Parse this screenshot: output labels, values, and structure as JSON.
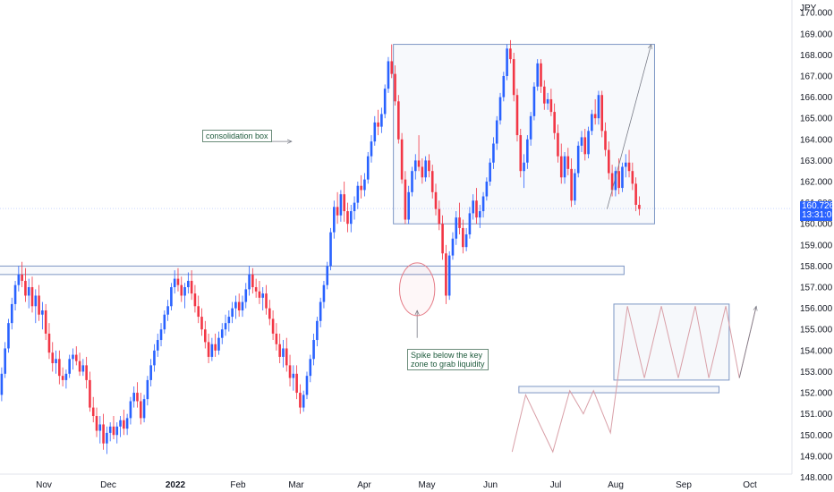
{
  "chart_data": {
    "type": "candlestick",
    "currency": "JPY",
    "y_axis": {
      "ticks": [
        "170.000",
        "169.000",
        "168.000",
        "167.000",
        "166.000",
        "165.000",
        "164.000",
        "163.000",
        "162.000",
        "161.000",
        "160.000",
        "159.000",
        "158.000",
        "157.000",
        "156.000",
        "155.000",
        "154.000",
        "153.000",
        "152.000",
        "151.000",
        "150.000",
        "149.000",
        "148.000"
      ],
      "ylim": [
        147.3,
        170.6
      ]
    },
    "x_axis": {
      "labels": [
        {
          "text": "Nov",
          "bold": false
        },
        {
          "text": "Dec",
          "bold": false
        },
        {
          "text": "2022",
          "bold": true
        },
        {
          "text": "Feb",
          "bold": false
        },
        {
          "text": "Mar",
          "bold": false
        },
        {
          "text": "Apr",
          "bold": false
        },
        {
          "text": "May",
          "bold": false
        },
        {
          "text": "Jun",
          "bold": false
        },
        {
          "text": "Jul",
          "bold": false
        },
        {
          "text": "Aug",
          "bold": false
        },
        {
          "text": "Sep",
          "bold": false
        },
        {
          "text": "Oct",
          "bold": false
        }
      ]
    },
    "colors": {
      "up": "#2962ff",
      "down": "#f23645",
      "box": "#7d96c4",
      "projection": "#d9a0a8"
    },
    "last_price": {
      "value": "160.726",
      "countdown": "13:31:05"
    },
    "candles": [
      [
        151.9,
        153.2,
        151.6,
        152.9
      ],
      [
        152.9,
        154.4,
        152.7,
        154.1
      ],
      [
        154.1,
        155.5,
        153.9,
        155.3
      ],
      [
        155.3,
        156.5,
        155.0,
        156.2
      ],
      [
        156.2,
        157.3,
        155.9,
        157.1
      ],
      [
        157.1,
        158.0,
        156.8,
        157.6
      ],
      [
        157.6,
        158.2,
        157.0,
        157.3
      ],
      [
        157.3,
        157.9,
        156.3,
        156.6
      ],
      [
        156.6,
        157.4,
        156.0,
        157.0
      ],
      [
        157.0,
        157.5,
        155.8,
        156.1
      ],
      [
        156.1,
        156.9,
        155.3,
        156.6
      ],
      [
        156.6,
        157.1,
        155.4,
        155.7
      ],
      [
        155.7,
        156.3,
        155.0,
        155.9
      ],
      [
        155.9,
        156.2,
        154.5,
        154.8
      ],
      [
        154.8,
        155.3,
        153.6,
        153.9
      ],
      [
        153.9,
        154.4,
        153.0,
        153.4
      ],
      [
        153.4,
        154.0,
        152.9,
        153.6
      ],
      [
        153.6,
        154.0,
        152.4,
        152.8
      ],
      [
        152.8,
        153.2,
        152.3,
        152.6
      ],
      [
        152.6,
        153.1,
        152.2,
        152.9
      ],
      [
        152.9,
        153.8,
        152.7,
        153.6
      ],
      [
        153.6,
        154.1,
        153.1,
        153.8
      ],
      [
        153.8,
        154.2,
        153.3,
        153.5
      ],
      [
        153.5,
        153.9,
        152.8,
        153.0
      ],
      [
        153.0,
        153.6,
        152.8,
        153.3
      ],
      [
        153.3,
        153.7,
        152.2,
        152.6
      ],
      [
        152.6,
        153.0,
        151.1,
        151.3
      ],
      [
        151.3,
        151.8,
        150.6,
        150.9
      ],
      [
        150.9,
        151.3,
        149.9,
        150.2
      ],
      [
        150.2,
        150.9,
        149.6,
        150.5
      ],
      [
        150.5,
        151.0,
        149.3,
        149.6
      ],
      [
        149.6,
        150.4,
        149.1,
        150.1
      ],
      [
        150.1,
        150.6,
        149.7,
        150.4
      ],
      [
        150.4,
        150.9,
        149.8,
        150.0
      ],
      [
        150.0,
        150.6,
        149.6,
        150.4
      ],
      [
        150.4,
        150.9,
        149.9,
        150.7
      ],
      [
        150.7,
        151.2,
        150.0,
        150.3
      ],
      [
        150.3,
        151.0,
        150.0,
        150.8
      ],
      [
        150.8,
        151.8,
        150.5,
        151.6
      ],
      [
        151.6,
        152.3,
        151.3,
        152.0
      ],
      [
        152.0,
        152.5,
        151.3,
        151.6
      ],
      [
        151.6,
        152.0,
        150.5,
        150.8
      ],
      [
        150.8,
        151.9,
        150.6,
        151.7
      ],
      [
        151.7,
        152.8,
        151.4,
        152.6
      ],
      [
        152.6,
        153.6,
        152.3,
        153.3
      ],
      [
        153.3,
        154.3,
        153.0,
        154.0
      ],
      [
        154.0,
        154.8,
        153.7,
        154.5
      ],
      [
        154.5,
        155.3,
        154.2,
        155.0
      ],
      [
        155.0,
        155.9,
        154.8,
        155.7
      ],
      [
        155.7,
        156.4,
        155.4,
        156.1
      ],
      [
        156.1,
        157.2,
        155.9,
        157.0
      ],
      [
        157.0,
        157.8,
        156.7,
        157.4
      ],
      [
        157.4,
        157.9,
        156.8,
        157.1
      ],
      [
        157.1,
        157.5,
        156.3,
        156.6
      ],
      [
        156.6,
        157.2,
        156.0,
        157.0
      ],
      [
        157.0,
        157.7,
        156.7,
        157.3
      ],
      [
        157.3,
        157.8,
        156.4,
        156.7
      ],
      [
        156.7,
        157.1,
        155.8,
        156.1
      ],
      [
        156.1,
        156.6,
        155.3,
        155.6
      ],
      [
        155.6,
        156.0,
        154.7,
        155.0
      ],
      [
        155.0,
        155.4,
        154.1,
        154.4
      ],
      [
        154.4,
        154.8,
        153.4,
        153.7
      ],
      [
        153.7,
        154.6,
        153.5,
        154.3
      ],
      [
        154.3,
        154.8,
        153.7,
        154.0
      ],
      [
        154.0,
        154.9,
        153.8,
        154.6
      ],
      [
        154.6,
        155.3,
        154.3,
        155.0
      ],
      [
        155.0,
        155.7,
        154.7,
        155.3
      ],
      [
        155.3,
        155.9,
        154.9,
        155.6
      ],
      [
        155.6,
        156.3,
        155.3,
        156.0
      ],
      [
        156.0,
        156.6,
        155.5,
        156.3
      ],
      [
        156.3,
        156.7,
        155.6,
        155.9
      ],
      [
        155.9,
        156.6,
        155.6,
        156.3
      ],
      [
        156.3,
        157.2,
        156.0,
        156.9
      ],
      [
        156.9,
        158.0,
        156.6,
        157.6
      ],
      [
        157.6,
        157.9,
        156.7,
        157.0
      ],
      [
        157.0,
        157.4,
        156.5,
        156.8
      ],
      [
        156.8,
        157.3,
        156.2,
        156.5
      ],
      [
        156.5,
        157.0,
        155.9,
        156.7
      ],
      [
        156.7,
        157.1,
        155.7,
        156.0
      ],
      [
        156.0,
        156.4,
        155.2,
        155.5
      ],
      [
        155.5,
        155.9,
        154.5,
        154.8
      ],
      [
        154.8,
        155.3,
        154.0,
        154.3
      ],
      [
        154.3,
        154.8,
        153.4,
        153.7
      ],
      [
        153.7,
        154.5,
        153.2,
        154.1
      ],
      [
        154.1,
        154.6,
        153.0,
        153.3
      ],
      [
        153.3,
        153.8,
        152.3,
        152.7
      ],
      [
        152.7,
        153.3,
        152.1,
        152.9
      ],
      [
        152.9,
        153.3,
        151.7,
        152.0
      ],
      [
        152.0,
        152.4,
        151.0,
        151.3
      ],
      [
        151.3,
        152.1,
        151.1,
        151.9
      ],
      [
        151.9,
        153.0,
        151.7,
        152.8
      ],
      [
        152.8,
        153.8,
        152.5,
        153.6
      ],
      [
        153.6,
        154.8,
        153.3,
        154.5
      ],
      [
        154.5,
        155.6,
        154.2,
        155.4
      ],
      [
        155.4,
        156.5,
        155.1,
        156.3
      ],
      [
        156.3,
        157.3,
        156.0,
        157.1
      ],
      [
        157.1,
        158.2,
        156.9,
        158.0
      ],
      [
        158.0,
        159.8,
        157.8,
        159.6
      ],
      [
        159.6,
        161.1,
        159.3,
        160.8
      ],
      [
        160.8,
        161.5,
        160.0,
        160.4
      ],
      [
        160.4,
        161.6,
        160.1,
        161.4
      ],
      [
        161.4,
        162.0,
        160.1,
        160.6
      ],
      [
        160.6,
        161.0,
        159.6,
        160.0
      ],
      [
        160.0,
        160.9,
        159.6,
        160.6
      ],
      [
        160.6,
        161.3,
        160.2,
        161.0
      ],
      [
        161.0,
        162.0,
        160.7,
        161.8
      ],
      [
        161.8,
        162.3,
        161.2,
        161.6
      ],
      [
        161.6,
        162.4,
        161.3,
        162.1
      ],
      [
        162.1,
        163.4,
        161.9,
        163.2
      ],
      [
        163.2,
        164.2,
        162.9,
        163.9
      ],
      [
        163.9,
        165.1,
        163.7,
        164.8
      ],
      [
        164.8,
        165.4,
        164.2,
        164.6
      ],
      [
        164.6,
        165.5,
        164.3,
        165.2
      ],
      [
        165.2,
        166.6,
        165.0,
        166.4
      ],
      [
        166.4,
        167.9,
        166.2,
        167.7
      ],
      [
        167.7,
        168.5,
        166.9,
        167.1
      ],
      [
        167.1,
        167.5,
        165.6,
        165.8
      ],
      [
        165.8,
        166.1,
        163.8,
        164.0
      ],
      [
        164.0,
        164.3,
        161.9,
        162.1
      ],
      [
        162.1,
        162.5,
        160.0,
        160.2
      ],
      [
        160.2,
        161.8,
        160.0,
        161.5
      ],
      [
        161.5,
        162.7,
        161.3,
        162.5
      ],
      [
        162.5,
        163.3,
        162.1,
        163.0
      ],
      [
        163.0,
        164.2,
        162.5,
        162.7
      ],
      [
        162.7,
        163.1,
        161.9,
        162.2
      ],
      [
        162.2,
        163.2,
        162.0,
        163.0
      ],
      [
        163.0,
        163.3,
        162.2,
        162.5
      ],
      [
        162.5,
        162.8,
        161.2,
        161.5
      ],
      [
        161.5,
        161.9,
        160.4,
        160.7
      ],
      [
        160.7,
        161.1,
        159.7,
        160.0
      ],
      [
        160.0,
        160.4,
        158.3,
        158.6
      ],
      [
        158.6,
        159.0,
        156.2,
        156.6
      ],
      [
        156.6,
        158.7,
        156.4,
        158.5
      ],
      [
        158.5,
        159.6,
        158.3,
        159.3
      ],
      [
        159.3,
        160.6,
        159.0,
        160.3
      ],
      [
        160.3,
        161.0,
        159.5,
        159.8
      ],
      [
        159.8,
        160.2,
        158.6,
        158.9
      ],
      [
        158.9,
        159.8,
        158.7,
        159.5
      ],
      [
        159.5,
        160.8,
        159.3,
        160.5
      ],
      [
        160.5,
        161.4,
        160.2,
        161.1
      ],
      [
        161.1,
        161.7,
        160.0,
        160.3
      ],
      [
        160.3,
        160.9,
        159.8,
        160.6
      ],
      [
        160.6,
        161.5,
        160.3,
        161.3
      ],
      [
        161.3,
        162.2,
        161.1,
        162.0
      ],
      [
        162.0,
        163.1,
        161.8,
        162.9
      ],
      [
        162.9,
        164.1,
        162.6,
        163.8
      ],
      [
        163.8,
        165.1,
        163.5,
        164.9
      ],
      [
        164.9,
        166.2,
        164.7,
        166.0
      ],
      [
        166.0,
        167.2,
        165.8,
        167.0
      ],
      [
        167.0,
        168.5,
        166.8,
        168.3
      ],
      [
        168.3,
        168.7,
        167.6,
        167.8
      ],
      [
        167.8,
        168.1,
        165.8,
        166.1
      ],
      [
        166.1,
        166.4,
        163.9,
        164.2
      ],
      [
        164.2,
        164.5,
        162.2,
        162.5
      ],
      [
        162.5,
        163.3,
        161.7,
        162.9
      ],
      [
        162.9,
        164.2,
        162.6,
        164.0
      ],
      [
        164.0,
        165.3,
        163.7,
        165.1
      ],
      [
        165.1,
        166.7,
        164.9,
        166.5
      ],
      [
        166.5,
        167.8,
        166.3,
        167.6
      ],
      [
        167.6,
        167.8,
        166.2,
        166.5
      ],
      [
        166.5,
        166.8,
        165.4,
        165.7
      ],
      [
        165.7,
        166.2,
        165.4,
        165.9
      ],
      [
        165.9,
        166.4,
        165.1,
        165.3
      ],
      [
        165.3,
        165.7,
        164.0,
        164.3
      ],
      [
        164.3,
        164.7,
        162.9,
        163.2
      ],
      [
        163.2,
        163.8,
        161.9,
        162.2
      ],
      [
        162.2,
        163.4,
        161.9,
        163.2
      ],
      [
        163.2,
        163.6,
        162.3,
        162.6
      ],
      [
        162.6,
        163.1,
        160.8,
        161.1
      ],
      [
        161.1,
        162.6,
        160.9,
        162.4
      ],
      [
        162.4,
        163.9,
        162.2,
        163.7
      ],
      [
        163.7,
        164.4,
        163.4,
        164.1
      ],
      [
        164.1,
        164.5,
        163.0,
        163.3
      ],
      [
        163.3,
        164.6,
        163.1,
        164.4
      ],
      [
        164.4,
        165.4,
        164.2,
        165.2
      ],
      [
        165.2,
        165.9,
        164.7,
        165.0
      ],
      [
        165.0,
        166.3,
        164.7,
        166.1
      ],
      [
        166.1,
        166.3,
        164.1,
        164.4
      ],
      [
        164.4,
        164.8,
        163.2,
        163.5
      ],
      [
        163.5,
        163.9,
        162.1,
        162.4
      ],
      [
        162.4,
        162.8,
        161.3,
        161.6
      ],
      [
        161.6,
        162.7,
        161.3,
        162.5
      ],
      [
        162.5,
        163.1,
        161.4,
        161.7
      ],
      [
        161.7,
        162.9,
        161.5,
        162.7
      ],
      [
        162.7,
        163.3,
        162.2,
        162.9
      ],
      [
        162.9,
        163.5,
        162.2,
        162.5
      ],
      [
        162.5,
        162.9,
        161.6,
        161.9
      ],
      [
        161.9,
        162.2,
        160.6,
        160.9
      ],
      [
        160.9,
        161.3,
        160.4,
        160.7
      ]
    ],
    "boxes": [
      {
        "name": "consolidation-box",
        "x_start": 116,
        "x_end": 193,
        "y_low": 160.0,
        "y_high": 168.5
      },
      {
        "name": "key-zone",
        "x_start": -2,
        "x_end": 184,
        "y_low": 157.6,
        "y_high": 158.0
      },
      {
        "name": "projection-zone",
        "x_start": 181,
        "x_end": 215,
        "y_low": 152.6,
        "y_high": 156.2
      },
      {
        "name": "projection-support",
        "x_start": 153,
        "x_end": 212,
        "y_low": 152.0,
        "y_high": 152.3
      }
    ],
    "projection_path": [
      [
        151,
        149.2
      ],
      [
        155,
        151.9
      ],
      [
        163,
        149.2
      ],
      [
        168,
        152.1
      ],
      [
        172,
        151.0
      ],
      [
        175,
        152.1
      ],
      [
        180,
        150.1
      ],
      [
        185,
        156.1
      ],
      [
        190,
        152.7
      ],
      [
        195,
        156.1
      ],
      [
        200,
        152.7
      ],
      [
        205,
        156.1
      ],
      [
        209,
        152.7
      ],
      [
        214,
        156.1
      ],
      [
        218,
        152.7
      ],
      [
        223,
        156.1
      ]
    ],
    "arrows": [
      {
        "name": "target-arrow",
        "from": [
          179,
          160.7
        ],
        "to": [
          192,
          168.5
        ]
      },
      {
        "name": "spike-pointer",
        "from": [
          123,
          154.6
        ],
        "to": [
          123,
          155.9
        ]
      },
      {
        "name": "box-pointer",
        "from": [
          74,
          163.9
        ],
        "to": [
          86,
          163.9
        ]
      }
    ],
    "spike_circle": {
      "x": 123,
      "y": 156.9,
      "rx": 5.2,
      "ry_price": 1.25
    },
    "annotations": {
      "consolidation": "consolidation box",
      "spike_line1": "Spike below the key",
      "spike_line2": "zone to grab liquidity"
    }
  }
}
